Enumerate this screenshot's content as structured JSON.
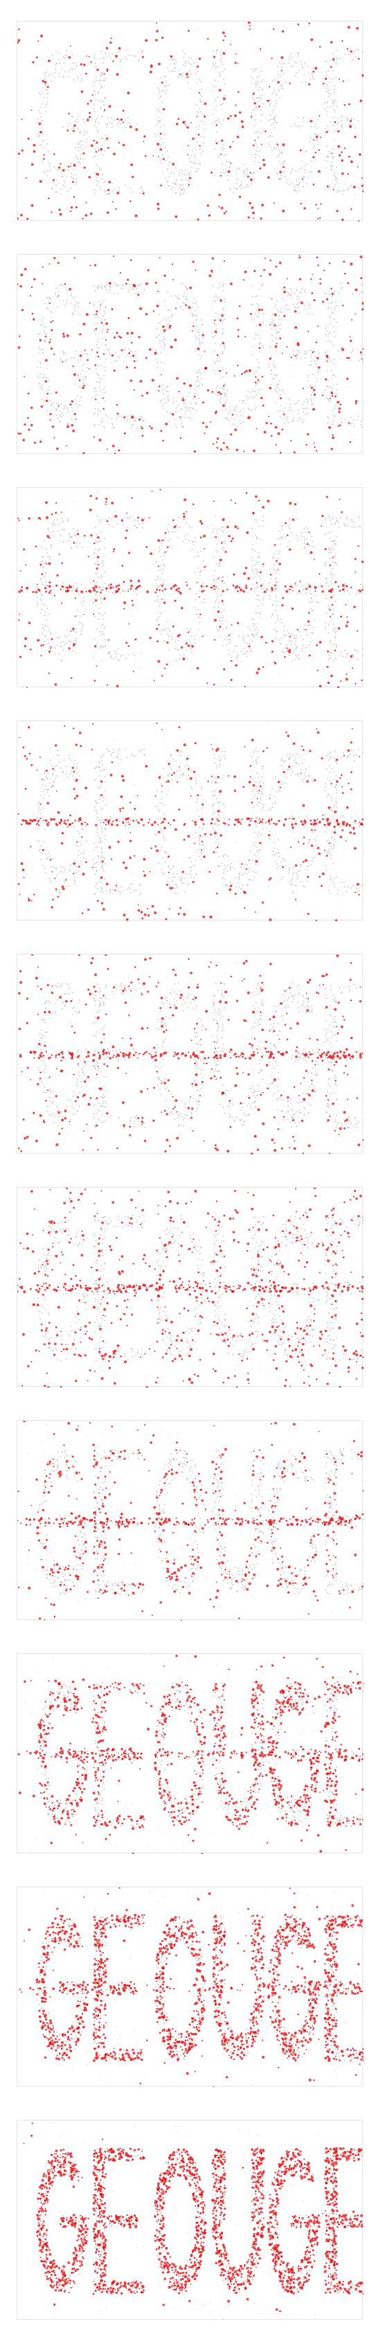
{
  "chart_data": [
    {
      "type": "scatter",
      "panel": 1,
      "red_density": 0.04,
      "red_band": 0.0,
      "grey_noise": 0.0
    },
    {
      "type": "scatter",
      "panel": 2,
      "red_density": 0.07,
      "red_band": 0.0,
      "grey_noise": 0.01
    },
    {
      "type": "scatter",
      "panel": 3,
      "red_density": 0.08,
      "red_band": 0.55,
      "grey_noise": 0.03
    },
    {
      "type": "scatter",
      "panel": 4,
      "red_density": 0.1,
      "red_band": 0.8,
      "grey_noise": 0.04
    },
    {
      "type": "scatter",
      "panel": 5,
      "red_density": 0.14,
      "red_band": 0.75,
      "grey_noise": 0.05
    },
    {
      "type": "scatter",
      "panel": 6,
      "red_density": 0.22,
      "red_band": 0.55,
      "grey_noise": 0.06
    },
    {
      "type": "scatter",
      "panel": 7,
      "red_density": 0.38,
      "red_band": 0.35,
      "grey_noise": 0.07
    },
    {
      "type": "scatter",
      "panel": 8,
      "red_density": 0.6,
      "red_band": 0.15,
      "grey_noise": 0.08
    },
    {
      "type": "scatter",
      "panel": 9,
      "red_density": 0.8,
      "red_band": 0.05,
      "grey_noise": 0.09
    },
    {
      "type": "scatter",
      "panel": 10,
      "red_density": 0.95,
      "red_band": 0.0,
      "grey_noise": 0.1
    }
  ],
  "colors": {
    "grey_point": "#9a9a9a",
    "red_point": "#e31a1c",
    "frame": "#e6e6e6"
  }
}
